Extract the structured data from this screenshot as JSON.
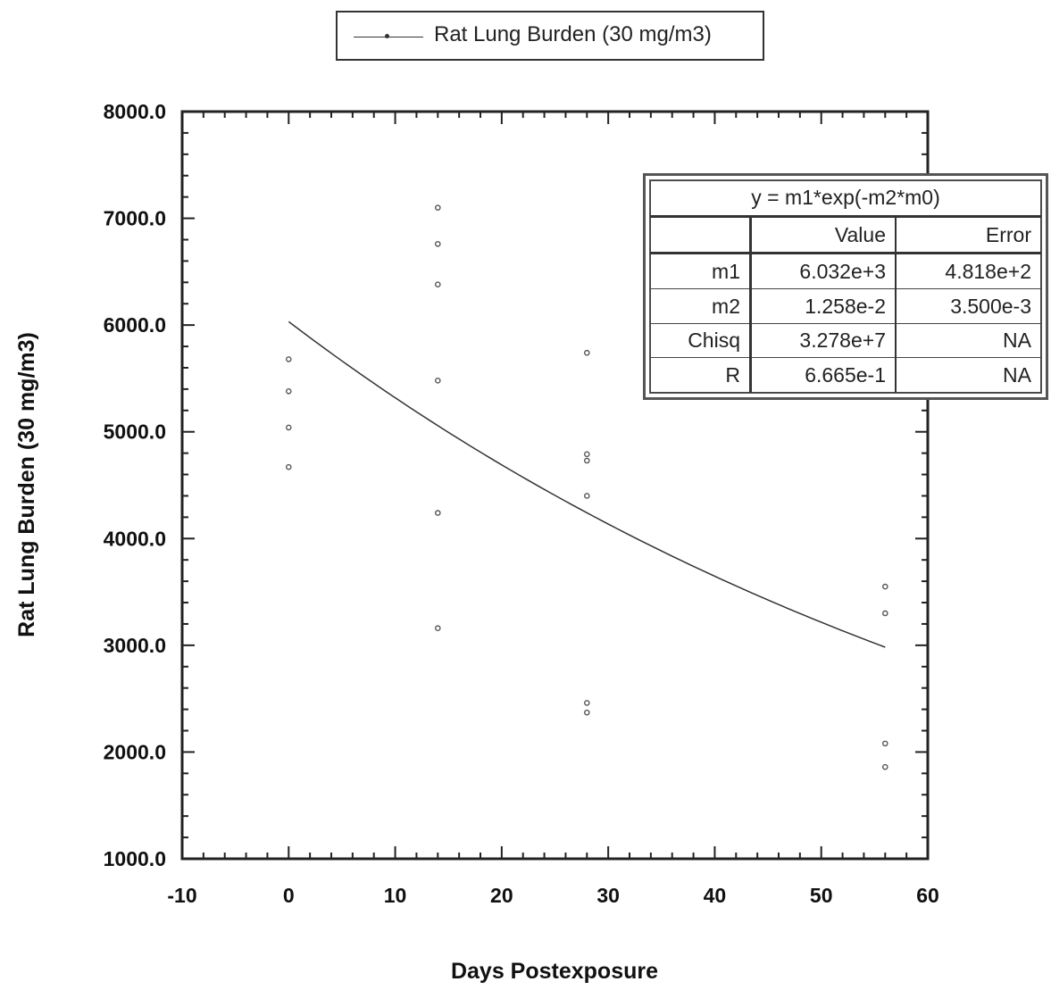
{
  "legend": {
    "label": "Rat Lung Burden (30 mg/m3)"
  },
  "fit_table": {
    "equation": "y = m1*exp(-m2*m0)",
    "headers": [
      "Value",
      "Error"
    ],
    "rows": [
      {
        "name": "m1",
        "value": "6.032e+3",
        "error": "4.818e+2"
      },
      {
        "name": "m2",
        "value": "1.258e-2",
        "error": "3.500e-3"
      },
      {
        "name": "Chisq",
        "value": "3.278e+7",
        "error": "NA"
      },
      {
        "name": "R",
        "value": "6.665e-1",
        "error": "NA"
      }
    ]
  },
  "chart_data": {
    "type": "scatter",
    "xlabel": "Days Postexposure",
    "ylabel": "Rat Lung Burden (30 mg/m3)",
    "xlim": [
      -10,
      60
    ],
    "ylim": [
      1000,
      8000
    ],
    "x_ticks": [
      -10,
      0,
      10,
      20,
      30,
      40,
      50,
      60
    ],
    "y_ticks": [
      1000,
      2000,
      3000,
      4000,
      5000,
      6000,
      7000,
      8000
    ],
    "x_tick_labels": [
      "-10",
      "0",
      "10",
      "20",
      "30",
      "40",
      "50",
      "60"
    ],
    "y_tick_labels": [
      "1000.0",
      "2000.0",
      "3000.0",
      "4000.0",
      "5000.0",
      "6000.0",
      "7000.0",
      "8000.0"
    ],
    "series": [
      {
        "name": "Rat Lung Burden (30 mg/m3)",
        "points": [
          {
            "x": 0,
            "y": 5680
          },
          {
            "x": 0,
            "y": 5380
          },
          {
            "x": 0,
            "y": 5040
          },
          {
            "x": 0,
            "y": 4670
          },
          {
            "x": 14,
            "y": 7100
          },
          {
            "x": 14,
            "y": 6760
          },
          {
            "x": 14,
            "y": 6380
          },
          {
            "x": 14,
            "y": 5480
          },
          {
            "x": 14,
            "y": 4240
          },
          {
            "x": 14,
            "y": 3160
          },
          {
            "x": 28,
            "y": 5740
          },
          {
            "x": 28,
            "y": 4790
          },
          {
            "x": 28,
            "y": 4730
          },
          {
            "x": 28,
            "y": 4400
          },
          {
            "x": 28,
            "y": 2460
          },
          {
            "x": 28,
            "y": 2370
          },
          {
            "x": 56,
            "y": 3550
          },
          {
            "x": 56,
            "y": 3300
          },
          {
            "x": 56,
            "y": 2080
          },
          {
            "x": 56,
            "y": 1860
          }
        ]
      }
    ],
    "fit_curve": {
      "m1": 6032,
      "m2": 0.01258,
      "x_range": [
        0,
        56
      ]
    },
    "grid": false,
    "legend_position": "top-center"
  }
}
